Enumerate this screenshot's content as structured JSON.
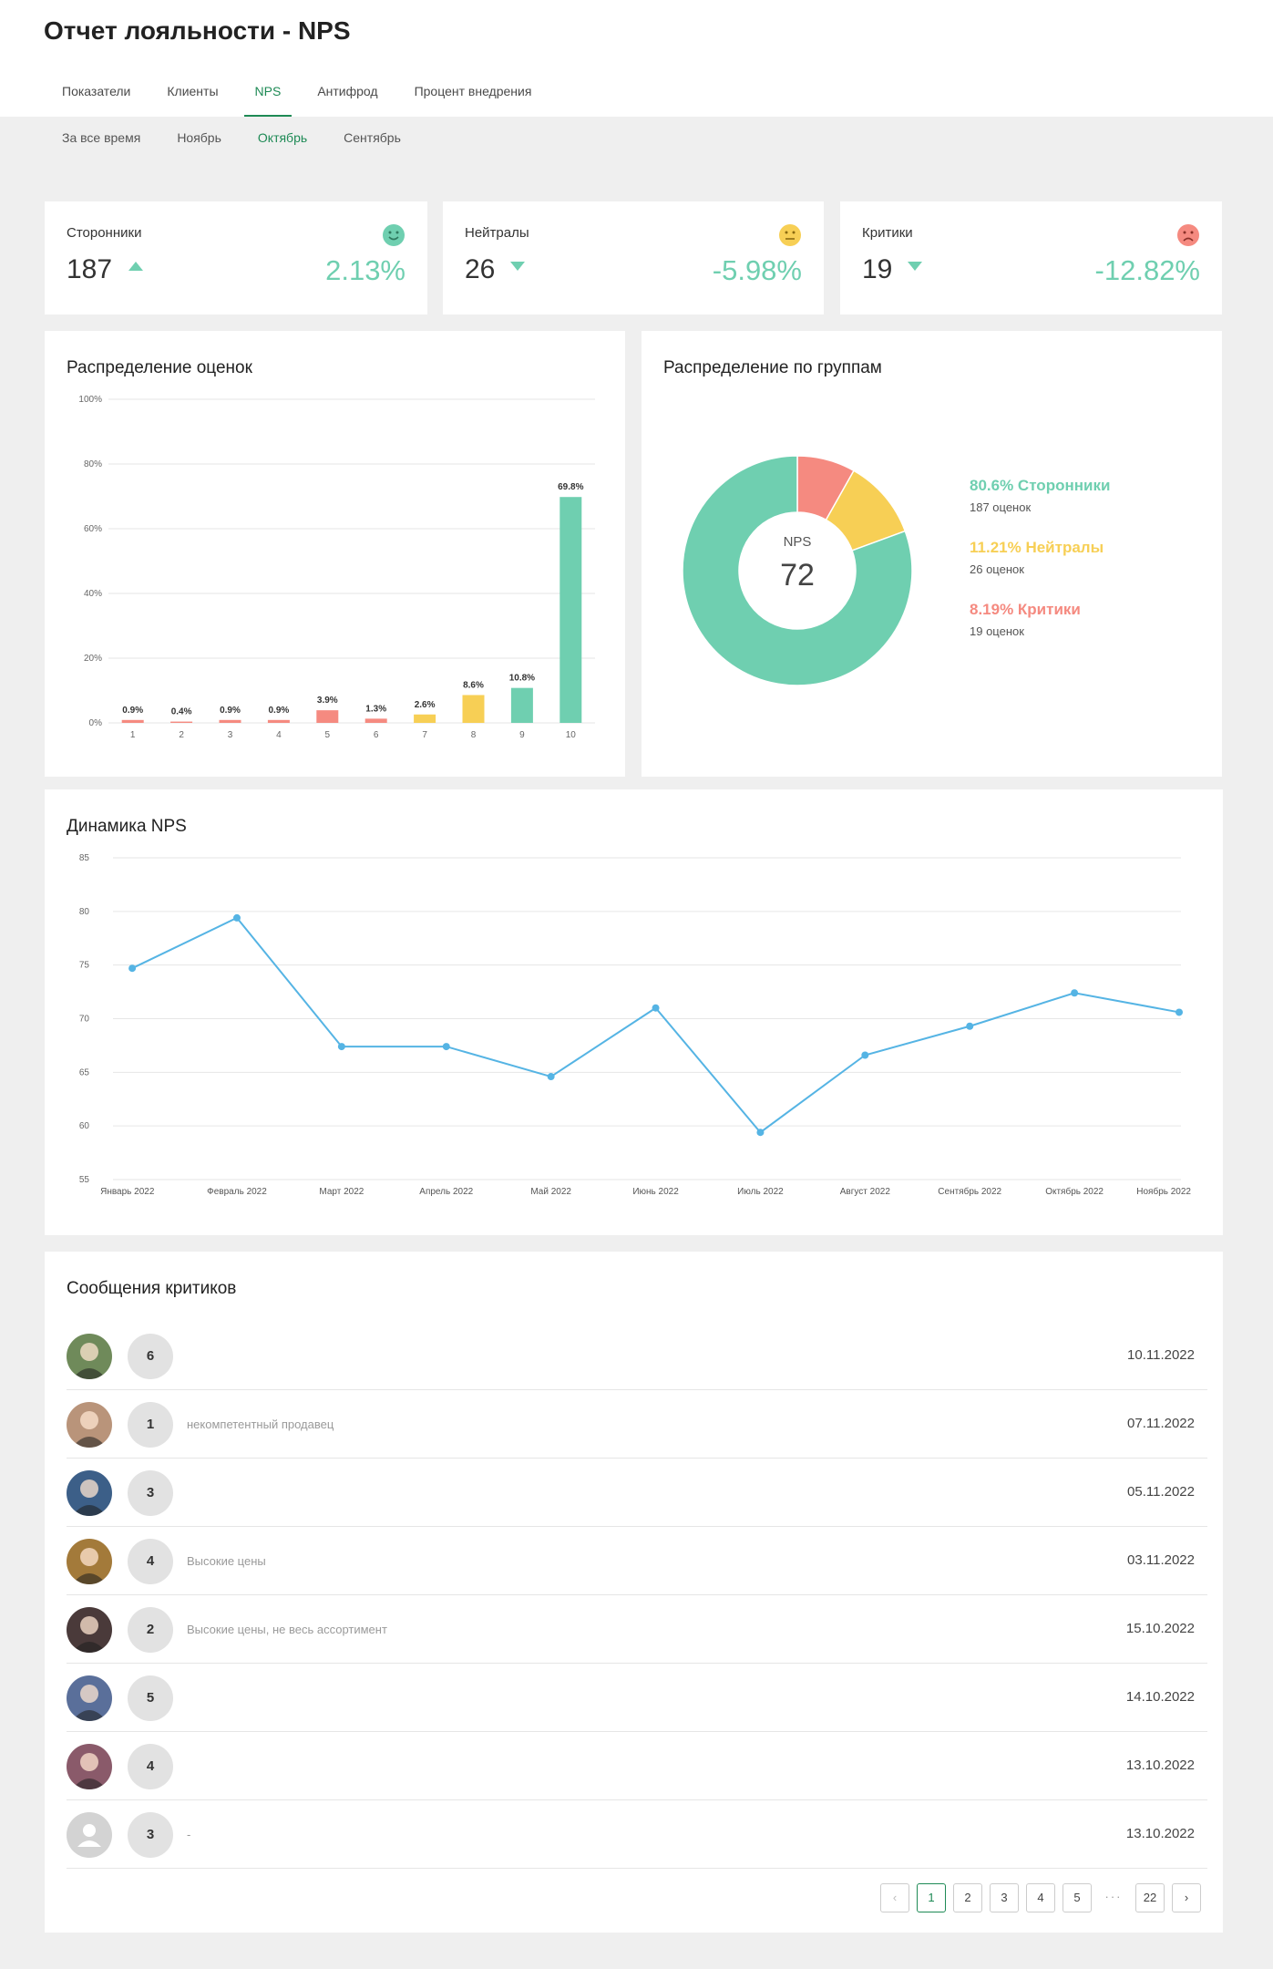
{
  "page": {
    "title": "Отчет лояльности - NPS"
  },
  "tabs": [
    {
      "label": "Показатели"
    },
    {
      "label": "Клиенты"
    },
    {
      "label": "NPS"
    },
    {
      "label": "Антифрод"
    },
    {
      "label": "Процент внедрения"
    }
  ],
  "subtabs": [
    {
      "label": "За все время"
    },
    {
      "label": "Ноябрь"
    },
    {
      "label": "Октябрь"
    },
    {
      "label": "Сентябрь"
    }
  ],
  "kpis": [
    {
      "label": "Сторонники",
      "value": "187",
      "trend": "up",
      "percent": "2.13%",
      "face_icon": "smile-icon",
      "face_color": "#6fcfb0"
    },
    {
      "label": "Нейтралы",
      "value": "26",
      "trend": "down",
      "percent": "-5.98%",
      "face_icon": "neutral-face-icon",
      "face_color": "#f7cf55"
    },
    {
      "label": "Критики",
      "value": "19",
      "trend": "down",
      "percent": "-12.82%",
      "face_icon": "frown-icon",
      "face_color": "#f58a80"
    }
  ],
  "score_distribution": {
    "title": "Распределение оценок",
    "chart_data": {
      "type": "bar",
      "categories": [
        "1",
        "2",
        "3",
        "4",
        "5",
        "6",
        "7",
        "8",
        "9",
        "10"
      ],
      "values": [
        0.9,
        0.4,
        0.9,
        0.9,
        3.9,
        1.3,
        2.6,
        8.6,
        10.8,
        69.8
      ],
      "labels": [
        "0.9%",
        "0.4%",
        "0.9%",
        "0.9%",
        "3.9%",
        "1.3%",
        "2.6%",
        "8.6%",
        "10.8%",
        "69.8%"
      ],
      "colors": [
        "#f58a80",
        "#f58a80",
        "#f58a80",
        "#f58a80",
        "#f58a80",
        "#f58a80",
        "#f7cf55",
        "#f7cf55",
        "#6fcfb0",
        "#6fcfb0"
      ],
      "yticks": [
        "0%",
        "20%",
        "40%",
        "60%",
        "80%",
        "100%"
      ],
      "ylim": [
        0,
        100
      ]
    }
  },
  "group_distribution": {
    "title": "Распределение по группам",
    "center_label": "NPS",
    "center_value": "72",
    "chart_data": {
      "type": "pie",
      "slices": [
        {
          "name": "Сторонники",
          "value": 80.6,
          "color": "#6fcfb0"
        },
        {
          "name": "Критики",
          "value": 8.19,
          "color": "#f58a80"
        },
        {
          "name": "Нейтралы",
          "value": 11.21,
          "color": "#f7cf55"
        }
      ]
    },
    "legend": [
      {
        "pct": "80.6% Сторонники",
        "count": "187 оценок",
        "color": "#6fcfb0"
      },
      {
        "pct": "11.21% Нейтралы",
        "count": "26 оценок",
        "color": "#f7cf55"
      },
      {
        "pct": "8.19% Критики",
        "count": "19 оценок",
        "color": "#f58a80"
      }
    ]
  },
  "nps_trend": {
    "title": "Динамика NPS",
    "chart_data": {
      "type": "line",
      "x": [
        "Январь 2022",
        "Февраль 2022",
        "Март 2022",
        "Апрель 2022",
        "Май 2022",
        "Июнь 2022",
        "Июль 2022",
        "Август 2022",
        "Сентябрь 2022",
        "Октябрь 2022",
        "Ноябрь 2022"
      ],
      "series": [
        {
          "values": [
            74.7,
            79.4,
            67.4,
            67.4,
            64.6,
            71.0,
            59.4,
            66.6,
            69.3,
            72.4,
            70.6
          ]
        }
      ],
      "yticks": [
        "55",
        "60",
        "65",
        "70",
        "75",
        "80",
        "85"
      ],
      "ylim": [
        55,
        85
      ],
      "color": "#55b4e4"
    }
  },
  "critics": {
    "title": "Сообщения критиков",
    "rows": [
      {
        "score": "6",
        "message": "",
        "date": "10.11.2022",
        "avatar": "a1"
      },
      {
        "score": "1",
        "message": "некомпетентный продавец",
        "date": "07.11.2022",
        "avatar": "a2"
      },
      {
        "score": "3",
        "message": "",
        "date": "05.11.2022",
        "avatar": "a3"
      },
      {
        "score": "4",
        "message": "Высокие цены",
        "date": "03.11.2022",
        "avatar": "a4"
      },
      {
        "score": "2",
        "message": "Высокие цены, не весь ассортимент",
        "date": "15.10.2022",
        "avatar": "a5"
      },
      {
        "score": "5",
        "message": "",
        "date": "14.10.2022",
        "avatar": "a6"
      },
      {
        "score": "4",
        "message": "",
        "date": "13.10.2022",
        "avatar": "a7"
      },
      {
        "score": "3",
        "message": "-",
        "date": "13.10.2022",
        "avatar": "placeholder"
      }
    ]
  },
  "pagination": {
    "prev": "‹",
    "pages": [
      "1",
      "2",
      "3",
      "4",
      "5"
    ],
    "ellipsis": "···",
    "last": "22",
    "next": "›"
  }
}
